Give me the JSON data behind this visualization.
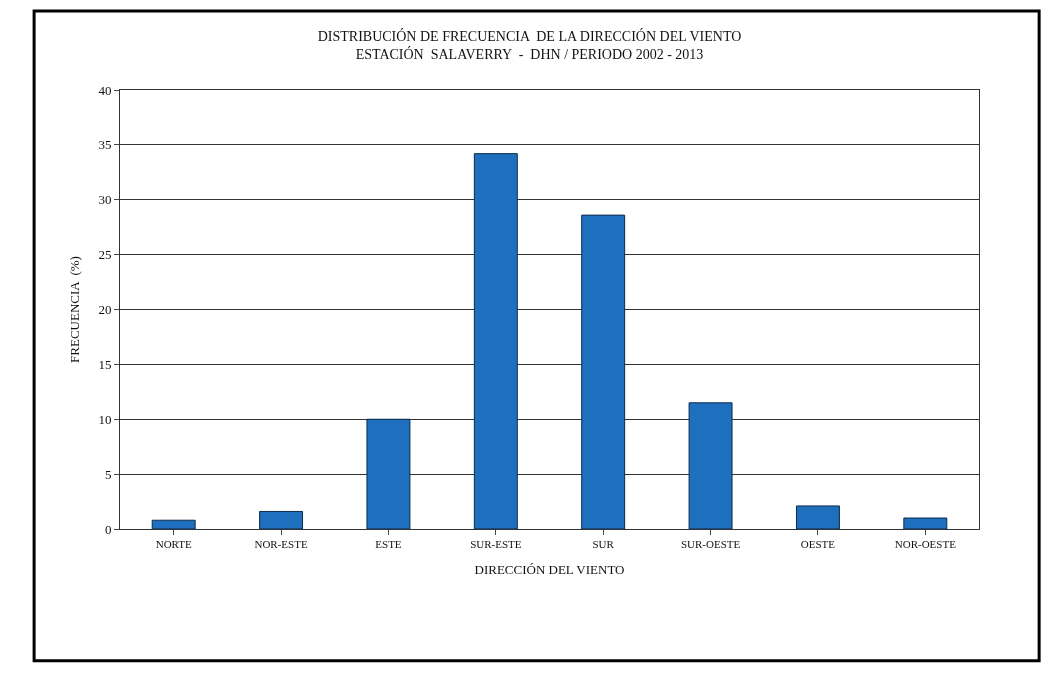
{
  "chart_data": {
    "type": "bar",
    "title": "DISTRIBUCIÓN DE FRECUENCIA  DE LA DIRECCIÓN DEL VIENTO\nESTACIÓN  SALAVERRY  -  DHN / PERIODO 2002 - 2013",
    "xlabel": "DIRECCIÓN DEL VIENTO",
    "ylabel": "FRECUENCIA  (%)",
    "categories": [
      "NORTE",
      "NOR-ESTE",
      "ESTE",
      "SUR-ESTE",
      "SUR",
      "SUR-OESTE",
      "OESTE",
      "NOR-OESTE"
    ],
    "values": [
      0.8,
      1.6,
      10,
      34.2,
      28.6,
      11.5,
      2.1,
      1.0
    ],
    "color": "#1f6fbf",
    "ylim": [
      0,
      40
    ],
    "yticks": [
      0,
      5,
      10,
      15,
      20,
      25,
      30,
      35,
      40
    ],
    "grid": "y"
  }
}
